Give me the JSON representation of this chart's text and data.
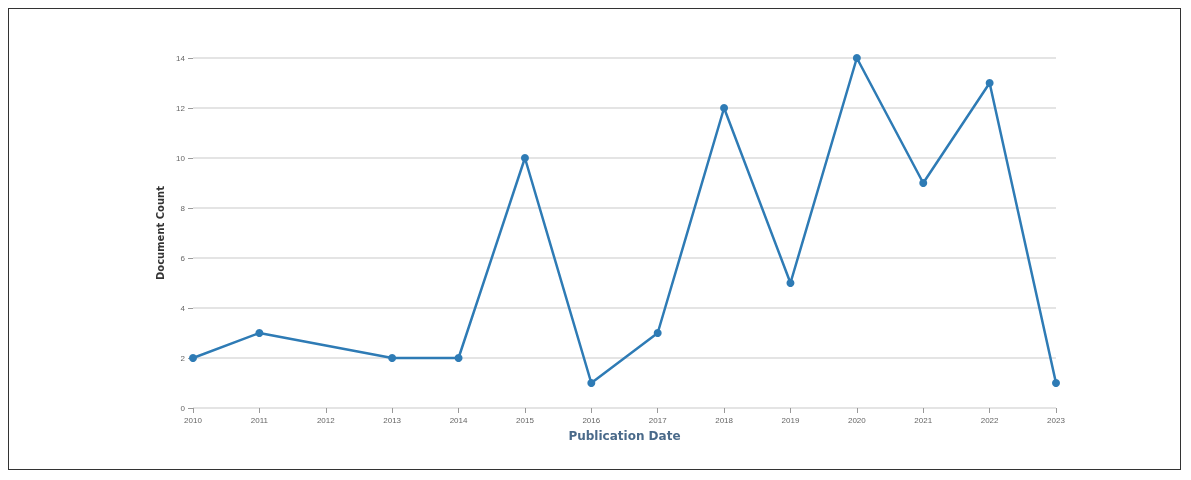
{
  "chart_data": {
    "type": "line",
    "xlabel": "Publication Date",
    "ylabel": "Document Count",
    "x": [
      2010,
      2011,
      2013,
      2014,
      2015,
      2016,
      2017,
      2018,
      2019,
      2020,
      2021,
      2022,
      2023
    ],
    "series": [
      {
        "color": "#2e7bb5",
        "values": [
          2,
          3,
          2,
          2,
          10,
          1,
          3,
          12,
          5,
          14,
          9,
          13,
          1
        ]
      }
    ],
    "xlim": [
      2010,
      2023
    ],
    "xticks": [
      2010,
      2011,
      2012,
      2013,
      2014,
      2015,
      2016,
      2017,
      2018,
      2019,
      2020,
      2021,
      2022,
      2023
    ],
    "ylim": [
      0,
      14
    ],
    "yticks": [
      0,
      2,
      4,
      6,
      8,
      10,
      12,
      14
    ],
    "grid": "y",
    "marker": "circle",
    "line_style": "solid"
  }
}
